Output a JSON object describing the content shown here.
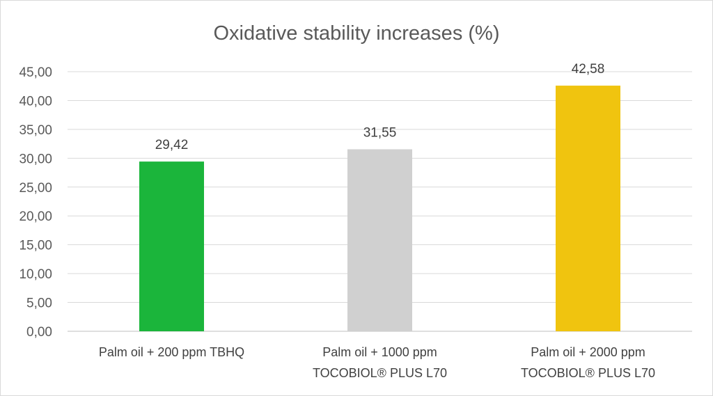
{
  "chart_data": {
    "type": "bar",
    "title": "Oxidative stability increases (%)",
    "xlabel": "",
    "ylabel": "",
    "ylim": [
      0,
      45
    ],
    "yticks": [
      "0,00",
      "5,00",
      "10,00",
      "15,00",
      "20,00",
      "25,00",
      "30,00",
      "35,00",
      "40,00",
      "45,00"
    ],
    "grid": true,
    "legend": "none",
    "categories": [
      [
        "Palm oil + 200 ppm TBHQ"
      ],
      [
        "Palm oil + 1000 ppm",
        "TOCOBIOL® PLUS L70"
      ],
      [
        "Palm oil + 2000 ppm",
        "TOCOBIOL® PLUS L70"
      ]
    ],
    "values": [
      29.42,
      31.55,
      42.58
    ],
    "data_labels": [
      "29,42",
      "31,55",
      "42,58"
    ],
    "colors": [
      "#1bb53b",
      "#d0d0d0",
      "#f0c40f"
    ]
  }
}
